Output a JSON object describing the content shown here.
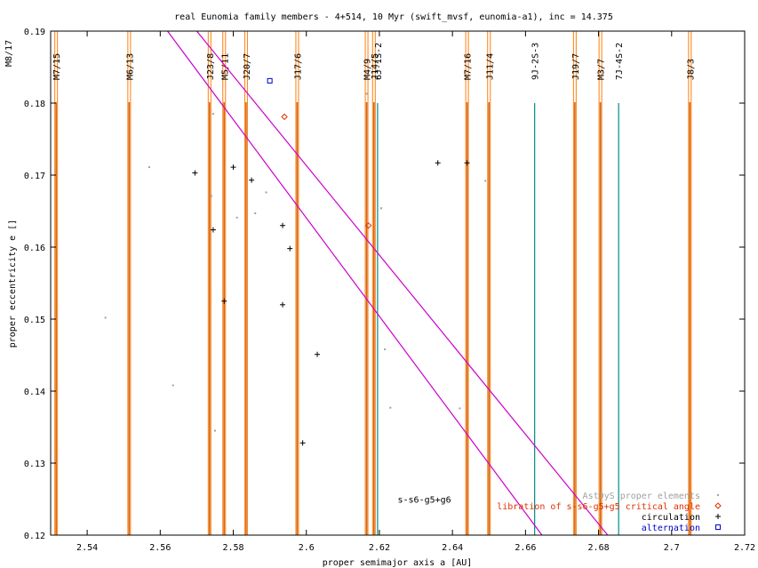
{
  "chart_data": {
    "type": "scatter",
    "title": "real Eunomia family members - 4+514, 10 Myr (swift_mvsf, eunomia-a1), inc = 14.375",
    "xlabel": "proper semimajor axis a [AU]",
    "ylabel": "proper eccentricity e []",
    "xlim": [
      2.53,
      2.72
    ],
    "ylim": [
      0.12,
      0.19
    ],
    "xticks": [
      "2.54",
      "2.56",
      "2.58",
      "2.6",
      "2.62",
      "2.64",
      "2.66",
      "2.68",
      "2.7",
      "2.72"
    ],
    "yticks": [
      "0.12",
      "0.13",
      "0.14",
      "0.15",
      "0.16",
      "0.17",
      "0.18",
      "0.19"
    ],
    "xtick_values": [
      2.54,
      2.56,
      2.58,
      2.6,
      2.62,
      2.64,
      2.66,
      2.68,
      2.7,
      2.72
    ],
    "ytick_values": [
      0.12,
      0.13,
      0.14,
      0.15,
      0.16,
      0.17,
      0.18,
      0.19
    ],
    "grid": false,
    "legend_position": "bottom-right",
    "colors": {
      "resonance": "#ff7f0e",
      "resonance_dark": "#d2691e",
      "secular_resonance": "#cc00cc",
      "three_body": "#008b8b",
      "astdys": "#a0a0a0",
      "libration": "#e03000",
      "circulation": "#000000",
      "alternation": "#0000cc",
      "legend_astdys_text": "#a0a0a0",
      "legend_libration_text": "#e03000",
      "legend_circulation_text": "#000000",
      "legend_alternation_text": "#0000cc"
    },
    "legend": [
      {
        "label": "AstDyS proper elements",
        "key": "astdys"
      },
      {
        "label": "libration of s-s6-g5+g5 critical angle",
        "key": "libration"
      },
      {
        "label": "circulation",
        "key": "circulation"
      },
      {
        "label": "alternation",
        "key": "alternation"
      }
    ],
    "resonances": [
      {
        "label": "M7/15",
        "a": 2.5315,
        "kind": "mmr"
      },
      {
        "label": "M6/13",
        "a": 2.5515,
        "kind": "mmr"
      },
      {
        "label": "J23/8",
        "a": 2.5735,
        "kind": "mmr"
      },
      {
        "label": "M5/11",
        "a": 2.5775,
        "kind": "mmr"
      },
      {
        "label": "J20/7",
        "a": 2.5835,
        "kind": "mmr"
      },
      {
        "label": "J17/6",
        "a": 2.5975,
        "kind": "mmr"
      },
      {
        "label": "M4/9",
        "a": 2.6165,
        "kind": "mmr"
      },
      {
        "label": "J14/5",
        "a": 2.6185,
        "kind": "mmr"
      },
      {
        "label": "6J-1S-2",
        "a": 2.6195,
        "kind": "three_body"
      },
      {
        "label": "M7/16",
        "a": 2.644,
        "kind": "mmr"
      },
      {
        "label": "J11/4",
        "a": 2.65,
        "kind": "mmr"
      },
      {
        "label": "9J-2S-3",
        "a": 2.6625,
        "kind": "three_body"
      },
      {
        "label": "J19/7",
        "a": 2.6735,
        "kind": "mmr"
      },
      {
        "label": "M3/7",
        "a": 2.6805,
        "kind": "mmr"
      },
      {
        "label": "7J-4S-2",
        "a": 2.6855,
        "kind": "three_body"
      },
      {
        "label": "J8/3",
        "a": 2.705,
        "kind": "mmr"
      }
    ],
    "edge_label": "M8/17",
    "secular_lines": [
      {
        "label": "s-s6-g5+g6",
        "points": [
          [
            2.562,
            0.19
          ],
          [
            2.6645,
            0.12
          ]
        ]
      },
      {
        "label": "",
        "points": [
          [
            2.57,
            0.19
          ],
          [
            2.6825,
            0.12
          ]
        ]
      }
    ],
    "secular_label": "s-s6-g5+g6",
    "secular_label_pos": [
      2.625,
      0.125
    ],
    "series": [
      {
        "name": "AstDyS proper elements",
        "key": "astdys",
        "marker": "dot",
        "points": [
          [
            2.545,
            0.1502
          ],
          [
            2.557,
            0.1711
          ],
          [
            2.5635,
            0.1408
          ],
          [
            2.574,
            0.1671
          ],
          [
            2.575,
            0.1345
          ],
          [
            2.581,
            0.1641
          ],
          [
            2.586,
            0.1647
          ],
          [
            2.589,
            0.1676
          ],
          [
            2.6165,
            0.1813
          ],
          [
            2.6205,
            0.1654
          ],
          [
            2.623,
            0.1377
          ],
          [
            2.642,
            0.1376
          ],
          [
            2.649,
            0.1692
          ],
          [
            2.5745,
            0.1785
          ],
          [
            2.6215,
            0.1458
          ]
        ]
      },
      {
        "name": "libration of s-s6-g5+g5 critical angle",
        "key": "libration",
        "marker": "diamond",
        "points": [
          [
            2.594,
            0.1781
          ],
          [
            2.617,
            0.163
          ]
        ]
      },
      {
        "name": "circulation",
        "key": "circulation",
        "marker": "plus",
        "points": [
          [
            2.5695,
            0.1703
          ],
          [
            2.5745,
            0.1624
          ],
          [
            2.5775,
            0.1525
          ],
          [
            2.58,
            0.1711
          ],
          [
            2.585,
            0.1693
          ],
          [
            2.5935,
            0.163
          ],
          [
            2.5955,
            0.1598
          ],
          [
            2.5935,
            0.152
          ],
          [
            2.603,
            0.1451
          ],
          [
            2.599,
            0.1328
          ],
          [
            2.636,
            0.1717
          ],
          [
            2.644,
            0.1717
          ]
        ]
      },
      {
        "name": "alternation",
        "key": "alternation",
        "marker": "square",
        "points": [
          [
            2.59,
            0.1831
          ]
        ]
      }
    ]
  }
}
